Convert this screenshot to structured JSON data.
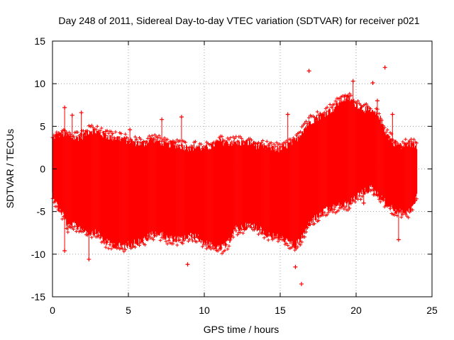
{
  "chart_data": {
    "type": "scatter",
    "title": "Day 248 of 2011, Sidereal Day-to-day VTEC variation (SDTVAR) for receiver p021",
    "xlabel": "GPS time / hours",
    "ylabel": "SDTVAR / TECUs",
    "xlim": [
      0,
      25
    ],
    "ylim": [
      -15,
      15
    ],
    "xticks": [
      0,
      5,
      10,
      15,
      20,
      25
    ],
    "yticks": [
      -15,
      -10,
      -5,
      0,
      5,
      10,
      15
    ],
    "xtick_labels": [
      "0",
      "5",
      "10",
      "15",
      "20",
      "25"
    ],
    "ytick_labels": [
      "-15",
      "-10",
      "-5",
      "0",
      "5",
      "10",
      "15"
    ],
    "grid": true,
    "marker": "+",
    "color": "#ff0000",
    "x_range_of_data": [
      0,
      24
    ],
    "series": [
      {
        "name": "SDTVAR",
        "envelope": {
          "hours": [
            0,
            0.3,
            0.8,
            1,
            1.5,
            2,
            2.5,
            3,
            3.5,
            4,
            4.5,
            5,
            5.5,
            6,
            6.5,
            7,
            7.5,
            8,
            8.5,
            9,
            9.5,
            10,
            10.5,
            11,
            11.5,
            12,
            12.5,
            13,
            13.5,
            14,
            14.5,
            15,
            15.5,
            16,
            16.5,
            17,
            17.5,
            18,
            18.5,
            19,
            19.5,
            20,
            20.5,
            21,
            21.5,
            22,
            22.5,
            23,
            23.5,
            24
          ],
          "upper": [
            3.5,
            4,
            4,
            3.8,
            3.5,
            3.8,
            4.5,
            4.2,
            3.8,
            3.6,
            3.5,
            3.2,
            3,
            2.8,
            3.5,
            3.2,
            2.8,
            2.8,
            2.6,
            2.4,
            2.5,
            2.3,
            2.6,
            3.2,
            3,
            3,
            3,
            3,
            2.6,
            2.5,
            2.4,
            2.2,
            2.7,
            3.2,
            4.5,
            5.5,
            6,
            6.5,
            7,
            8,
            8.3,
            7.5,
            7,
            6.5,
            6.2,
            4,
            3,
            2.5,
            3,
            2.6
          ],
          "lower": [
            -2.8,
            -4.2,
            -5.5,
            -6.8,
            -6.5,
            -7,
            -7.3,
            -7.5,
            -8.5,
            -8.8,
            -9,
            -8.8,
            -8.5,
            -8.3,
            -7.6,
            -7.5,
            -8,
            -8.2,
            -8.2,
            -7.8,
            -7.9,
            -8.5,
            -9,
            -9.3,
            -8.8,
            -7,
            -6.8,
            -6.5,
            -6.8,
            -7.5,
            -7.8,
            -8,
            -8.5,
            -9,
            -7.8,
            -6,
            -5.5,
            -4.8,
            -4.5,
            -4.2,
            -4.1,
            -3.2,
            -2.6,
            -2.2,
            -3,
            -4,
            -4.8,
            -5,
            -5,
            -3.2
          ]
        },
        "outliers": [
          {
            "x": 0.8,
            "y": 7.2
          },
          {
            "x": 0.8,
            "y": -9.6
          },
          {
            "x": 1.3,
            "y": 6.3
          },
          {
            "x": 1.9,
            "y": 6.6
          },
          {
            "x": 2.4,
            "y": -10.6
          },
          {
            "x": 3.5,
            "y": 4.4
          },
          {
            "x": 5.1,
            "y": 4.6
          },
          {
            "x": 7.2,
            "y": 5.8
          },
          {
            "x": 8.5,
            "y": 6.1
          },
          {
            "x": 8.9,
            "y": -11.2
          },
          {
            "x": 15.5,
            "y": 6.4
          },
          {
            "x": 16.0,
            "y": -11.5
          },
          {
            "x": 16.4,
            "y": -13.5
          },
          {
            "x": 16.9,
            "y": 11.5
          },
          {
            "x": 19.8,
            "y": 10.3
          },
          {
            "x": 20.5,
            "y": -4.0
          },
          {
            "x": 21.1,
            "y": 10.1
          },
          {
            "x": 21.4,
            "y": 8.0
          },
          {
            "x": 21.9,
            "y": 11.9
          },
          {
            "x": 22.4,
            "y": 6.4
          },
          {
            "x": 22.8,
            "y": -8.3
          }
        ]
      }
    ]
  }
}
